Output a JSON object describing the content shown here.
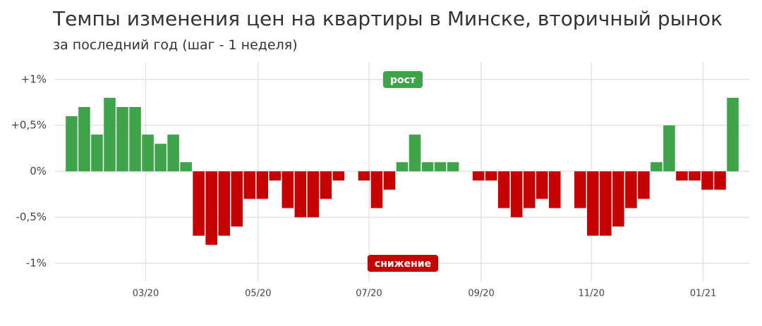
{
  "chart_data": {
    "type": "bar",
    "title": "Темпы изменения цен на квартиры в Минске, вторичный рынок",
    "subtitle": "за последний год (шаг - 1 неделя)",
    "x": [
      0,
      1,
      2,
      3,
      4,
      5,
      6,
      7,
      8,
      9,
      10,
      11,
      12,
      13,
      14,
      15,
      16,
      17,
      18,
      19,
      20,
      21,
      22,
      23,
      24,
      25,
      26,
      27,
      28,
      29,
      30,
      31,
      32,
      33,
      34,
      35,
      36,
      37,
      38,
      39,
      40,
      41,
      42,
      43,
      44,
      45,
      46,
      47,
      48,
      49,
      50,
      51,
      52
    ],
    "values": [
      0.6,
      0.7,
      0.4,
      0.8,
      0.7,
      0.7,
      0.4,
      0.3,
      0.4,
      0.1,
      -0.7,
      -0.8,
      -0.7,
      -0.6,
      -0.3,
      -0.3,
      -0.1,
      -0.4,
      -0.5,
      -0.5,
      -0.3,
      -0.1,
      0,
      -0.1,
      -0.4,
      -0.2,
      0.1,
      0.4,
      0.1,
      0.1,
      0.1,
      0,
      -0.1,
      -0.1,
      -0.4,
      -0.5,
      -0.4,
      -0.3,
      -0.4,
      0,
      -0.4,
      -0.7,
      -0.7,
      -0.6,
      -0.4,
      -0.3,
      0.1,
      0.5,
      -0.1,
      -0.1,
      -0.2,
      -0.2,
      0.8
    ],
    "colors": {
      "positive": "#3fa34a",
      "negative": "#c40000"
    },
    "xlim": [
      -1.3,
      53.3
    ],
    "xticks": [
      {
        "value": 5.83,
        "label": "03/20"
      },
      {
        "value": 14.67,
        "label": "05/20"
      },
      {
        "value": 23.39,
        "label": "07/20"
      },
      {
        "value": 32.22,
        "label": "09/20"
      },
      {
        "value": 40.89,
        "label": "11/20"
      },
      {
        "value": 49.67,
        "label": "01/21"
      }
    ],
    "ylim": [
      -1.2,
      1.19
    ],
    "yticks": [
      {
        "value": 1,
        "label": "+1%"
      },
      {
        "value": 0.5,
        "label": "+0,5%"
      },
      {
        "value": 0,
        "label": "0%"
      },
      {
        "value": -0.5,
        "label": "-0,5%"
      },
      {
        "value": -1,
        "label": "-1%"
      }
    ],
    "grid": true,
    "annotations": [
      "рост",
      "снижение"
    ]
  }
}
